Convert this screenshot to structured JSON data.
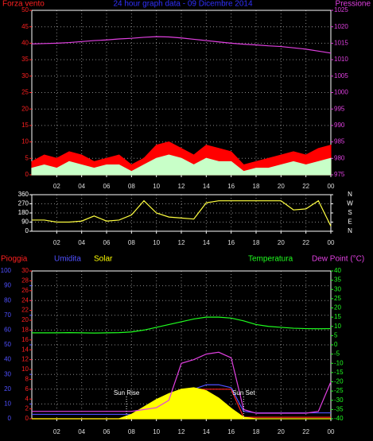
{
  "chart_data": [
    {
      "type": "line",
      "title": "24 hour graph data - 09 Dicembre 2014",
      "ylabel": "Forza vento",
      "y2label": "Pressione",
      "x": [
        0,
        1,
        2,
        3,
        4,
        5,
        6,
        7,
        8,
        9,
        10,
        11,
        12,
        13,
        14,
        15,
        16,
        17,
        18,
        19,
        20,
        21,
        22,
        23,
        24
      ],
      "xlim": [
        0,
        24
      ],
      "xticks": [
        {
          "value": 2,
          "label": "02"
        },
        {
          "value": 4,
          "label": "04"
        },
        {
          "value": 6,
          "label": "06"
        },
        {
          "value": 8,
          "label": "08"
        },
        10,
        12,
        14,
        16,
        18,
        20,
        22,
        {
          "value": 24,
          "label": "00"
        }
      ],
      "ylim": [
        0,
        50
      ],
      "yticks": [
        0,
        5,
        10,
        15,
        20,
        25,
        30,
        35,
        40,
        45,
        50
      ],
      "y2lim": [
        975,
        1025
      ],
      "y2ticks": [
        975,
        980,
        985,
        990,
        995,
        1000,
        1005,
        1010,
        1015,
        1020,
        1025
      ],
      "ycolor": "#ff2020",
      "y2color": "#e040e0",
      "grid": true,
      "series": [
        {
          "color": "#ff0000",
          "fill": true,
          "values": [
            4,
            6,
            5,
            7,
            6,
            4,
            5,
            6,
            3,
            5,
            9,
            10,
            8,
            6,
            9,
            8,
            7,
            3,
            4,
            5,
            6,
            7,
            6,
            8,
            9
          ]
        },
        {
          "color": "#c8ffc8",
          "fill": true,
          "values": [
            2,
            3,
            2,
            4,
            3,
            2,
            3,
            3,
            1,
            3,
            5,
            6,
            5,
            3,
            5,
            4,
            4,
            1,
            2,
            2,
            3,
            4,
            3,
            4,
            5
          ]
        },
        {
          "color": "#e040e0",
          "axis": "y2",
          "values": [
            1014.8,
            1014.9,
            1015,
            1015.2,
            1015.5,
            1015.8,
            1016,
            1016.3,
            1016.5,
            1016.8,
            1017,
            1016.9,
            1016.6,
            1016.2,
            1015.8,
            1015.4,
            1015,
            1014.7,
            1014.5,
            1014.2,
            1014,
            1013.6,
            1013.2,
            1012.6,
            1012
          ]
        }
      ]
    },
    {
      "type": "line",
      "x": [
        0,
        1,
        2,
        3,
        4,
        5,
        6,
        7,
        8,
        9,
        10,
        11,
        12,
        13,
        14,
        15,
        16,
        17,
        18,
        19,
        20,
        21,
        22,
        23,
        24
      ],
      "xlim": [
        0,
        24
      ],
      "xticks": [
        {
          "value": 2,
          "label": "02"
        },
        {
          "value": 4,
          "label": "04"
        },
        {
          "value": 6,
          "label": "06"
        },
        {
          "value": 8,
          "label": "08"
        },
        10,
        12,
        14,
        16,
        18,
        20,
        22,
        {
          "value": 24,
          "label": "00"
        }
      ],
      "ylim": [
        0,
        360
      ],
      "yticks": [
        0,
        90,
        180,
        270,
        360
      ],
      "y2lim": [
        0,
        360
      ],
      "y2ticks": [
        {
          "value": 0,
          "label": "N"
        },
        {
          "value": 90,
          "label": "E"
        },
        {
          "value": 180,
          "label": "S"
        },
        {
          "value": 270,
          "label": "W"
        },
        {
          "value": 360,
          "label": "N"
        }
      ],
      "ycolor": "#ffffff",
      "y2color": "#ffffff",
      "grid": true,
      "series": [
        {
          "color": "#ffff40",
          "values": [
            110,
            110,
            90,
            90,
            100,
            150,
            100,
            110,
            160,
            300,
            180,
            140,
            130,
            120,
            280,
            300,
            300,
            300,
            300,
            300,
            300,
            210,
            220,
            300,
            50
          ]
        }
      ]
    },
    {
      "type": "line",
      "x": [
        0,
        1,
        2,
        3,
        4,
        5,
        6,
        7,
        8,
        9,
        10,
        11,
        12,
        13,
        14,
        15,
        16,
        17,
        18,
        19,
        20,
        21,
        22,
        23,
        24
      ],
      "xlim": [
        0,
        24
      ],
      "xticks": [
        {
          "value": 2,
          "label": "02"
        },
        {
          "value": 4,
          "label": "04"
        },
        {
          "value": 6,
          "label": "06"
        },
        {
          "value": 8,
          "label": "08"
        },
        10,
        12,
        14,
        16,
        18,
        20,
        22,
        {
          "value": 24,
          "label": "00"
        }
      ],
      "ylim": [
        0,
        100
      ],
      "yticks": [
        0,
        10,
        20,
        30,
        40,
        50,
        60,
        70,
        80,
        90,
        100
      ],
      "y3lim": [
        0,
        30
      ],
      "y3ticks": [
        0,
        2,
        4,
        6,
        8,
        10,
        12,
        14,
        16,
        18,
        20,
        22,
        24,
        26,
        28,
        30
      ],
      "y2lim": [
        -40,
        40
      ],
      "y2ticks": [
        -40,
        -35,
        -30,
        -25,
        -20,
        -15,
        -10,
        -5,
        0,
        5,
        10,
        15,
        20,
        25,
        30,
        35,
        40
      ],
      "ycolor": "#5050ff",
      "y3color": "#ff2020",
      "y2color": "#20ff20",
      "grid": true,
      "series": [
        {
          "name": "Pioggia",
          "color": "#ff2020",
          "axis": "y3",
          "values": [
            0,
            0,
            0,
            0,
            0,
            0,
            0,
            0,
            0,
            0.5,
            1.5,
            2.5,
            3.5,
            6,
            6,
            6,
            6,
            0.3,
            0.3,
            0.3,
            0.3,
            0.3,
            0.3,
            0.3,
            0.3
          ]
        },
        {
          "name": "Umidita",
          "color": "#5050ff",
          "values": [
            3,
            3,
            3,
            3,
            3,
            3,
            3,
            3,
            3,
            3,
            3,
            3,
            10,
            20,
            23,
            23,
            21,
            5,
            4,
            4,
            4,
            4,
            4,
            4,
            4
          ]
        },
        {
          "name": "Solar",
          "color": "#ffff00",
          "fill": true,
          "values": [
            0,
            0,
            0,
            0,
            0,
            0,
            0,
            0,
            3,
            8,
            13,
            17,
            20,
            21,
            19,
            14,
            7,
            1,
            0,
            0,
            0,
            0,
            0,
            0,
            0
          ]
        },
        {
          "name": "Temperatura",
          "color": "#20ff20",
          "axis": "y2",
          "values": [
            6.5,
            6.5,
            6.5,
            6.6,
            6.5,
            6.4,
            6.5,
            6.6,
            7,
            8,
            9.5,
            11,
            12.5,
            14,
            15,
            15,
            14.5,
            13,
            11,
            10,
            9.5,
            9,
            8.8,
            8.7,
            8.8
          ]
        },
        {
          "name": "Dew Point (°C)",
          "color": "#e040e0",
          "axis": "y2",
          "values": [
            -36,
            -36,
            -36,
            -36,
            -36,
            -36,
            -36,
            -36,
            -36,
            -35,
            -34,
            -30,
            -10,
            -8,
            -5,
            -4,
            -7,
            -35,
            -37,
            -37,
            -37,
            -37,
            -37,
            -36,
            -20
          ]
        }
      ],
      "annotations": [
        {
          "text": "Sun Rise",
          "x": 7.6
        },
        {
          "text": "Sun Set",
          "x": 17
        }
      ]
    }
  ]
}
